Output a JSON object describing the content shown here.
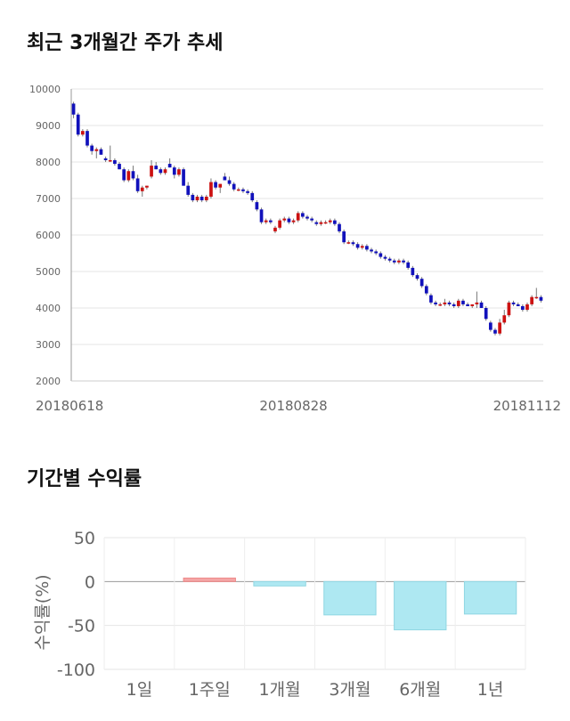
{
  "sections": {
    "price_title": "최근 3개월간 주가 추세",
    "returns_title": "기간별 수익률"
  },
  "chart_data": [
    {
      "type": "candlestick",
      "title": "최근 3개월간 주가 추세",
      "ylim": [
        2000,
        10000
      ],
      "yticks": [
        "10000",
        "9000",
        "8000",
        "7000",
        "6000",
        "5000",
        "4000",
        "3000",
        "2000"
      ],
      "ytick_values": [
        10000,
        9000,
        8000,
        7000,
        6000,
        5000,
        4000,
        3000,
        2000
      ],
      "xtick_labels": [
        "20180618",
        "20180828",
        "20181112"
      ],
      "xtick_index": [
        0,
        48,
        99
      ],
      "colors": {
        "up": "#cc1111",
        "down": "#1111bb"
      },
      "ohlc": [
        [
          9600,
          9650,
          9200,
          9300
        ],
        [
          9300,
          9350,
          8700,
          8750
        ],
        [
          8750,
          8900,
          8700,
          8850
        ],
        [
          8850,
          8900,
          8400,
          8450
        ],
        [
          8450,
          8500,
          8200,
          8300
        ],
        [
          8300,
          8400,
          8100,
          8350
        ],
        [
          8350,
          8400,
          8200,
          8200
        ],
        [
          8100,
          8150,
          8000,
          8050
        ],
        [
          8050,
          8450,
          8000,
          8050
        ],
        [
          8050,
          8100,
          7900,
          7950
        ],
        [
          7950,
          8000,
          7800,
          7800
        ],
        [
          7800,
          7850,
          7450,
          7500
        ],
        [
          7500,
          7800,
          7450,
          7750
        ],
        [
          7750,
          7900,
          7500,
          7550
        ],
        [
          7550,
          7650,
          7150,
          7200
        ],
        [
          7200,
          7350,
          7050,
          7300
        ],
        [
          7300,
          7350,
          7250,
          7350
        ],
        [
          7600,
          8050,
          7550,
          7900
        ],
        [
          7900,
          8000,
          7800,
          7800
        ],
        [
          7800,
          7850,
          7650,
          7700
        ],
        [
          7700,
          7850,
          7650,
          7800
        ],
        [
          7950,
          8100,
          7850,
          7850
        ],
        [
          7850,
          7900,
          7550,
          7650
        ],
        [
          7650,
          7850,
          7600,
          7800
        ],
        [
          7800,
          7850,
          7350,
          7350
        ],
        [
          7350,
          7450,
          7050,
          7100
        ],
        [
          7100,
          7150,
          6900,
          6950
        ],
        [
          6950,
          7100,
          6900,
          7050
        ],
        [
          7050,
          7100,
          6900,
          6950
        ],
        [
          6950,
          7100,
          6900,
          7050
        ],
        [
          7050,
          7550,
          7000,
          7450
        ],
        [
          7450,
          7500,
          7250,
          7300
        ],
        [
          7300,
          7400,
          7150,
          7400
        ],
        [
          7600,
          7700,
          7500,
          7500
        ],
        [
          7500,
          7600,
          7350,
          7400
        ],
        [
          7400,
          7450,
          7200,
          7250
        ],
        [
          7250,
          7300,
          7200,
          7250
        ],
        [
          7250,
          7300,
          7150,
          7200
        ],
        [
          7200,
          7250,
          7100,
          7150
        ],
        [
          7150,
          7200,
          6900,
          6950
        ],
        [
          6900,
          6950,
          6650,
          6700
        ],
        [
          6700,
          6750,
          6300,
          6350
        ],
        [
          6350,
          6450,
          6300,
          6400
        ],
        [
          6400,
          6450,
          6300,
          6350
        ],
        [
          6100,
          6250,
          6050,
          6200
        ],
        [
          6200,
          6450,
          6150,
          6400
        ],
        [
          6400,
          6500,
          6350,
          6450
        ],
        [
          6450,
          6500,
          6300,
          6350
        ],
        [
          6350,
          6450,
          6300,
          6400
        ],
        [
          6400,
          6650,
          6350,
          6600
        ],
        [
          6600,
          6650,
          6450,
          6500
        ],
        [
          6500,
          6550,
          6400,
          6450
        ],
        [
          6450,
          6500,
          6350,
          6400
        ],
        [
          6350,
          6400,
          6250,
          6300
        ],
        [
          6300,
          6400,
          6250,
          6350
        ],
        [
          6350,
          6400,
          6300,
          6350
        ],
        [
          6350,
          6450,
          6300,
          6400
        ],
        [
          6400,
          6450,
          6250,
          6300
        ],
        [
          6300,
          6350,
          6050,
          6100
        ],
        [
          6100,
          6150,
          5750,
          5800
        ],
        [
          5800,
          5850,
          5750,
          5800
        ],
        [
          5800,
          5850,
          5700,
          5750
        ],
        [
          5750,
          5800,
          5600,
          5650
        ],
        [
          5650,
          5750,
          5600,
          5700
        ],
        [
          5700,
          5750,
          5550,
          5600
        ],
        [
          5600,
          5650,
          5500,
          5550
        ],
        [
          5550,
          5600,
          5450,
          5500
        ],
        [
          5500,
          5550,
          5350,
          5400
        ],
        [
          5400,
          5450,
          5300,
          5350
        ],
        [
          5350,
          5400,
          5250,
          5300
        ],
        [
          5300,
          5350,
          5200,
          5250
        ],
        [
          5250,
          5350,
          5200,
          5300
        ],
        [
          5300,
          5350,
          5200,
          5250
        ],
        [
          5250,
          5300,
          5050,
          5100
        ],
        [
          5100,
          5150,
          4850,
          4900
        ],
        [
          4900,
          4950,
          4750,
          4800
        ],
        [
          4800,
          4850,
          4550,
          4600
        ],
        [
          4600,
          4650,
          4350,
          4400
        ],
        [
          4350,
          4400,
          4100,
          4150
        ],
        [
          4150,
          4200,
          4050,
          4100
        ],
        [
          4100,
          4150,
          4050,
          4100
        ],
        [
          4100,
          4250,
          4050,
          4150
        ],
        [
          4150,
          4200,
          4050,
          4100
        ],
        [
          4100,
          4150,
          4000,
          4050
        ],
        [
          4050,
          4250,
          4000,
          4200
        ],
        [
          4200,
          4250,
          4050,
          4100
        ],
        [
          4100,
          4150,
          4050,
          4050
        ],
        [
          4050,
          4100,
          4000,
          4100
        ],
        [
          4100,
          4450,
          4000,
          4150
        ],
        [
          4150,
          4200,
          4000,
          4000
        ],
        [
          4000,
          4050,
          3650,
          3700
        ],
        [
          3600,
          3650,
          3350,
          3400
        ],
        [
          3400,
          3450,
          3250,
          3300
        ],
        [
          3300,
          3700,
          3250,
          3600
        ],
        [
          3600,
          3950,
          3550,
          3800
        ],
        [
          3800,
          4200,
          3750,
          4150
        ],
        [
          4150,
          4200,
          4050,
          4100
        ],
        [
          4100,
          4150,
          4050,
          4050
        ],
        [
          4050,
          4100,
          3900,
          3950
        ],
        [
          3950,
          4150,
          3900,
          4100
        ],
        [
          4100,
          4350,
          4050,
          4300
        ],
        [
          4300,
          4550,
          4250,
          4300
        ],
        [
          4300,
          4350,
          4150,
          4200
        ]
      ]
    },
    {
      "type": "bar",
      "title": "기간별 수익률",
      "ylabel": "수익률(%)",
      "ylim": [
        -100,
        50
      ],
      "yticks": [
        "50",
        "0",
        "-50",
        "-100"
      ],
      "ytick_values": [
        50,
        0,
        -50,
        -100
      ],
      "categories": [
        "1일",
        "1주일",
        "1개월",
        "3개월",
        "6개월",
        "1년"
      ],
      "values": [
        0,
        4,
        -5,
        -38,
        -55,
        -37
      ],
      "colors": {
        "positive": "#f4a6a6",
        "negative": "#aee8f2"
      }
    }
  ]
}
